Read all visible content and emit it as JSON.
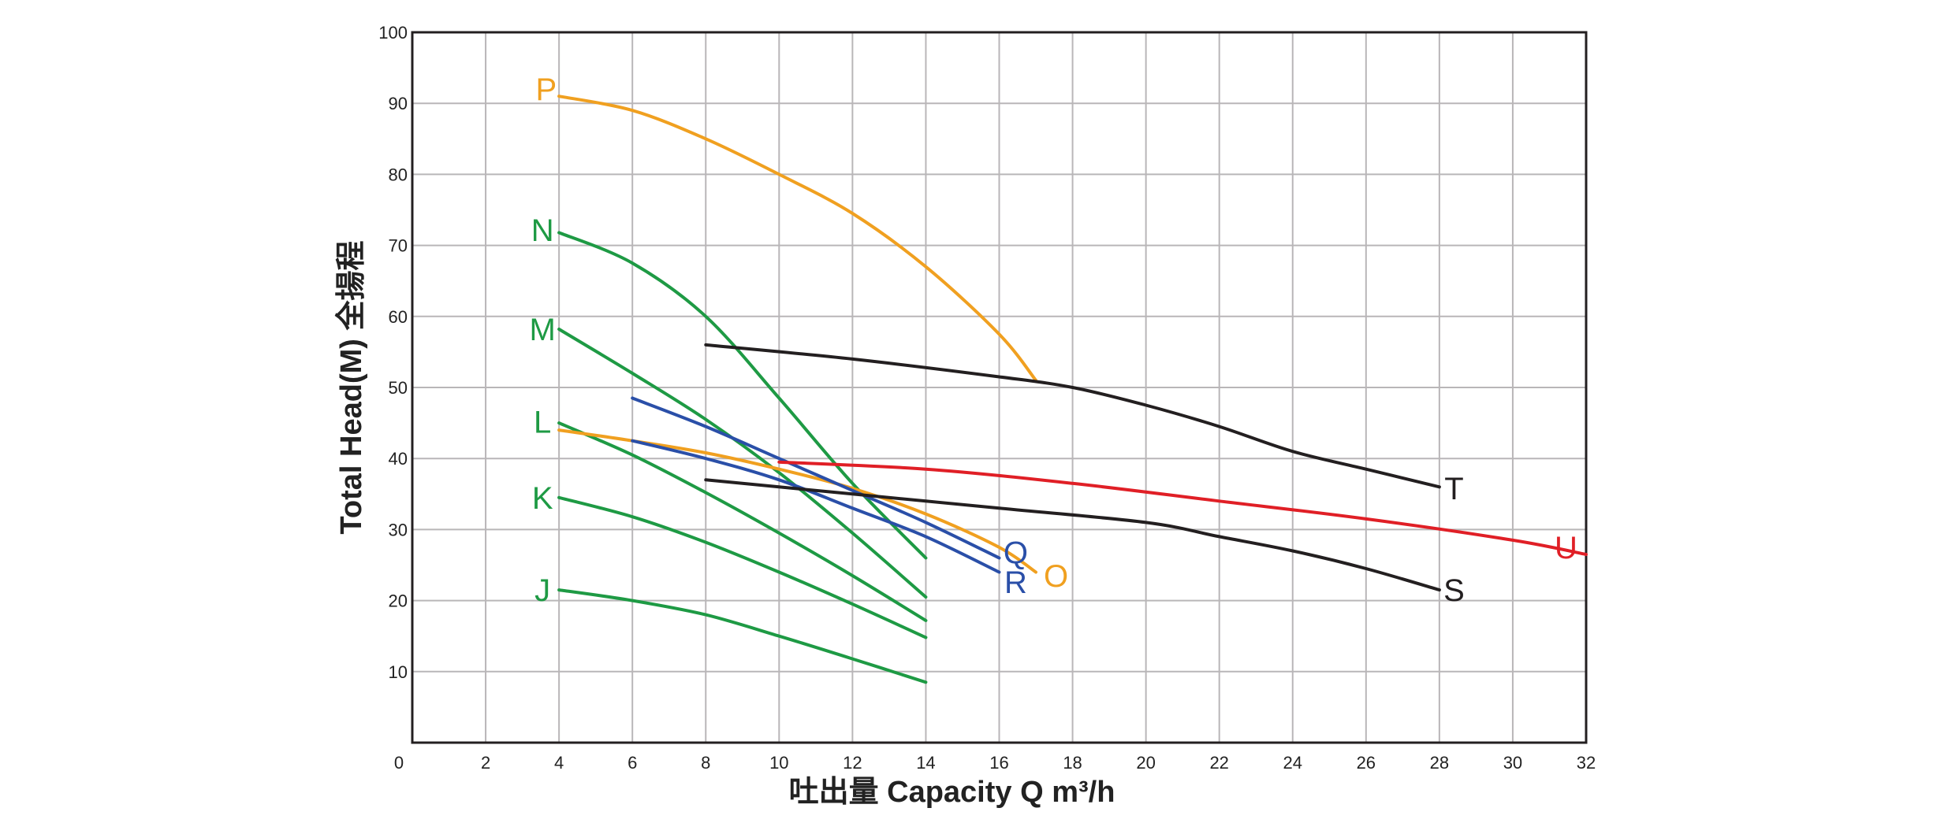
{
  "chart_data": {
    "type": "line",
    "title": "",
    "xlabel": "吐出量 Capacity Q m³/h",
    "ylabel": "Total Head(M) 全揚程",
    "xlim": [
      0,
      32
    ],
    "ylim": [
      0,
      100
    ],
    "grid": true,
    "x_ticks": [
      "0",
      "2",
      "4",
      "6",
      "8",
      "10",
      "12",
      "14",
      "16",
      "18",
      "20",
      "22",
      "24",
      "26",
      "28",
      "30",
      "32"
    ],
    "y_ticks": [
      "10",
      "20",
      "30",
      "40",
      "50",
      "60",
      "70",
      "80",
      "90",
      "100"
    ],
    "series": [
      {
        "name": "J",
        "color": "#1e9a44",
        "x": [
          4,
          6,
          8,
          10,
          12,
          14
        ],
        "y": [
          21.5,
          20,
          18,
          15,
          11.8,
          8.5
        ]
      },
      {
        "name": "K",
        "color": "#1e9a44",
        "x": [
          4,
          6,
          8,
          10,
          12,
          14
        ],
        "y": [
          34.5,
          31.8,
          28.2,
          24,
          19.5,
          14.8
        ]
      },
      {
        "name": "L",
        "color": "#1e9a44",
        "x": [
          4,
          6,
          8,
          10,
          12,
          14
        ],
        "y": [
          45,
          40.5,
          35.2,
          29.5,
          23.5,
          17.2
        ]
      },
      {
        "name": "M",
        "color": "#1e9a44",
        "x": [
          4,
          6,
          8,
          10,
          12,
          14
        ],
        "y": [
          58.2,
          52,
          45.5,
          38,
          29.5,
          20.5
        ]
      },
      {
        "name": "N",
        "color": "#1e9a44",
        "x": [
          4,
          6,
          8,
          10,
          12,
          14
        ],
        "y": [
          71.8,
          67.5,
          60,
          48.5,
          36.5,
          26
        ]
      },
      {
        "name": "O",
        "color": "#f0a020",
        "x": [
          4,
          6,
          8,
          10,
          12,
          14,
          16,
          17
        ],
        "y": [
          44,
          42.5,
          40.8,
          38.5,
          35.8,
          32.2,
          27.5,
          24
        ]
      },
      {
        "name": "P",
        "color": "#f0a020",
        "x": [
          4,
          6,
          8,
          10,
          12,
          14,
          16,
          17
        ],
        "y": [
          91,
          89,
          85,
          80,
          74.5,
          67,
          57.5,
          51
        ]
      },
      {
        "name": "Q",
        "color": "#2a4fa8",
        "x": [
          6,
          8,
          10,
          12,
          14,
          16
        ],
        "y": [
          48.5,
          44.5,
          40,
          35.5,
          31,
          26
        ]
      },
      {
        "name": "R",
        "color": "#2a4fa8",
        "x": [
          6,
          8,
          10,
          12,
          14,
          16
        ],
        "y": [
          42.5,
          40,
          37,
          33,
          29,
          24
        ]
      },
      {
        "name": "S",
        "color": "#231f20",
        "x": [
          8,
          12,
          16,
          20,
          22,
          24,
          26,
          28
        ],
        "y": [
          37,
          35,
          33,
          31,
          29,
          27,
          24.5,
          21.5
        ]
      },
      {
        "name": "T",
        "color": "#231f20",
        "x": [
          8,
          12,
          16,
          18,
          20,
          22,
          24,
          26,
          28
        ],
        "y": [
          56,
          54,
          51.5,
          50,
          47.5,
          44.5,
          41,
          38.5,
          36
        ]
      },
      {
        "name": "U",
        "color": "#e01f26",
        "x": [
          10,
          14,
          18,
          22,
          26,
          30,
          32
        ],
        "y": [
          39.5,
          38.5,
          36.5,
          34,
          31.5,
          28.5,
          26.5
        ]
      }
    ],
    "labels": [
      {
        "text": "J",
        "x": 3.55,
        "y": 21.5,
        "color": "#1e9a44"
      },
      {
        "text": "K",
        "x": 3.55,
        "y": 34.5,
        "color": "#1e9a44"
      },
      {
        "text": "L",
        "x": 3.55,
        "y": 45.2,
        "color": "#1e9a44"
      },
      {
        "text": "M",
        "x": 3.55,
        "y": 58.2,
        "color": "#1e9a44"
      },
      {
        "text": "N",
        "x": 3.55,
        "y": 72.2,
        "color": "#1e9a44"
      },
      {
        "text": "P",
        "x": 3.65,
        "y": 92,
        "color": "#f0a020"
      },
      {
        "text": "O",
        "x": 17.55,
        "y": 23.5,
        "color": "#f0a020"
      },
      {
        "text": "Q",
        "x": 16.45,
        "y": 26.8,
        "color": "#2a4fa8"
      },
      {
        "text": "R",
        "x": 16.45,
        "y": 22.6,
        "color": "#2a4fa8"
      },
      {
        "text": "S",
        "x": 28.4,
        "y": 21.5,
        "color": "#231f20"
      },
      {
        "text": "T",
        "x": 28.4,
        "y": 35.8,
        "color": "#231f20"
      },
      {
        "text": "U",
        "x": 31.45,
        "y": 27.5,
        "color": "#e01f26"
      }
    ]
  }
}
